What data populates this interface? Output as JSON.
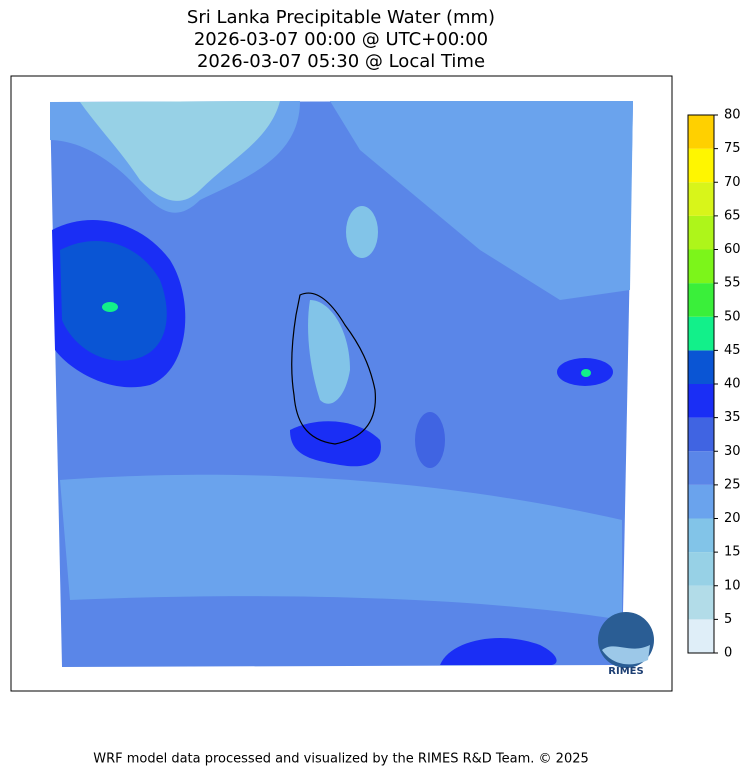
{
  "title": [
    "Sri Lanka Precipitable Water (mm)",
    "2026-03-07 00:00 @ UTC+00:00",
    "2026-03-07 05:30 @ Local Time"
  ],
  "colorbar": {
    "ticks": [
      0,
      5,
      10,
      15,
      20,
      25,
      30,
      35,
      40,
      45,
      50,
      55,
      60,
      65,
      70,
      75,
      80
    ],
    "colors": [
      "#dfeef8",
      "#b2dce8",
      "#97d1e6",
      "#82c4e8",
      "#6aa3ed",
      "#5a86e8",
      "#4064e2",
      "#1a2ef5",
      "#0a55d4",
      "#12f08a",
      "#3aef3a",
      "#7cf51a",
      "#aef51a",
      "#d8f51a",
      "#fff600",
      "#ffd000"
    ]
  },
  "logo": "RIMES",
  "footer": "WRF model data processed and visualized by the RIMES R&D Team. © 2025"
}
